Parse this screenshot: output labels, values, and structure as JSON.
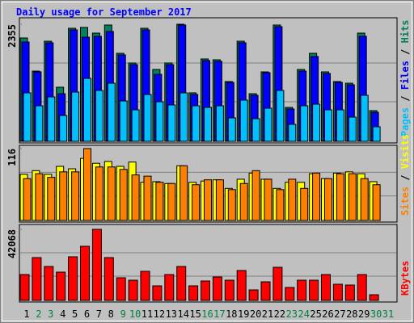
{
  "title": "Daily usage for September 2017",
  "chart_data": [
    {
      "type": "bar",
      "ylim": [
        0,
        2355
      ],
      "yticks": [
        2355
      ],
      "grid": true,
      "separator": "/",
      "series": [
        {
          "name": "Hits",
          "color": "#00805c",
          "values": [
            2077,
            1406,
            2011,
            1079,
            2273,
            2290,
            2175,
            2339,
            1766,
            1570,
            2273,
            1439,
            1570,
            2355,
            965,
            1652,
            1635,
            1194,
            2011,
            948,
            1390,
            2339,
            671,
            1439,
            1766,
            1390,
            1194,
            1161,
            2175,
            605,
            null
          ]
        },
        {
          "name": "Files",
          "color": "#0000ff",
          "values": [
            1995,
            1390,
            1979,
            948,
            2240,
            2093,
            2110,
            2208,
            1734,
            1537,
            2240,
            1341,
            1537,
            2339,
            932,
            1619,
            1603,
            1177,
            1979,
            916,
            1374,
            2306,
            638,
            1406,
            1701,
            1357,
            1177,
            1128,
            2110,
            572,
            null
          ]
        },
        {
          "name": "Pages",
          "color": "#00c0ff",
          "values": [
            965,
            703,
            883,
            507,
            981,
            1259,
            1014,
            1161,
            801,
            621,
            932,
            785,
            720,
            965,
            703,
            671,
            703,
            458,
            818,
            442,
            654,
            1014,
            327,
            703,
            736,
            621,
            621,
            474,
            916,
            278,
            null
          ]
        }
      ]
    },
    {
      "type": "bar",
      "ylim": [
        0,
        116
      ],
      "yticks": [
        116
      ],
      "grid": true,
      "separator": "/",
      "series": [
        {
          "name": "Visits",
          "color": "#ffff00",
          "values": [
            74,
            80,
            74,
            87,
            83,
            100,
            92,
            95,
            87,
            94,
            61,
            62,
            59,
            88,
            61,
            63,
            65,
            51,
            66,
            76,
            66,
            51,
            61,
            61,
            75,
            67,
            76,
            78,
            75,
            62,
            null
          ]
        },
        {
          "name": "Sites",
          "color": "#ff8000",
          "values": [
            67,
            75,
            69,
            78,
            78,
            116,
            86,
            86,
            82,
            73,
            71,
            61,
            59,
            88,
            57,
            65,
            65,
            49,
            59,
            80,
            66,
            49,
            66,
            51,
            76,
            67,
            75,
            75,
            67,
            57,
            null
          ]
        }
      ]
    },
    {
      "type": "bar",
      "ylim": [
        0,
        42068
      ],
      "yticks": [
        42068
      ],
      "grid": true,
      "categories": [
        "1",
        "2",
        "3",
        "4",
        "5",
        "6",
        "7",
        "8",
        "9",
        "10",
        "11",
        "12",
        "13",
        "14",
        "15",
        "16",
        "17",
        "18",
        "19",
        "20",
        "21",
        "22",
        "23",
        "24",
        "25",
        "26",
        "27",
        "28",
        "29",
        "30",
        "31"
      ],
      "category_colors": [
        "#000000",
        "#008040",
        "#008040",
        "#000000",
        "#000000",
        "#000000",
        "#000000",
        "#000000",
        "#008040",
        "#008040",
        "#000000",
        "#000000",
        "#000000",
        "#000000",
        "#000000",
        "#008040",
        "#008040",
        "#000000",
        "#000000",
        "#000000",
        "#000000",
        "#000000",
        "#008040",
        "#008040",
        "#000000",
        "#000000",
        "#000000",
        "#000000",
        "#000000",
        "#008040",
        "#008040"
      ],
      "series": [
        {
          "name": "KBytes",
          "color": "#ff0000",
          "values": [
            14990,
            25144,
            19825,
            16440,
            25627,
            31914,
            42068,
            25144,
            13056,
            11605,
            16924,
            8220,
            14990,
            19825,
            8220,
            11121,
            13539,
            11605,
            17407,
            5802,
            10638,
            19342,
            7253,
            11605,
            11605,
            14990,
            9187,
            8704,
            14990,
            2901,
            null
          ]
        }
      ]
    }
  ]
}
